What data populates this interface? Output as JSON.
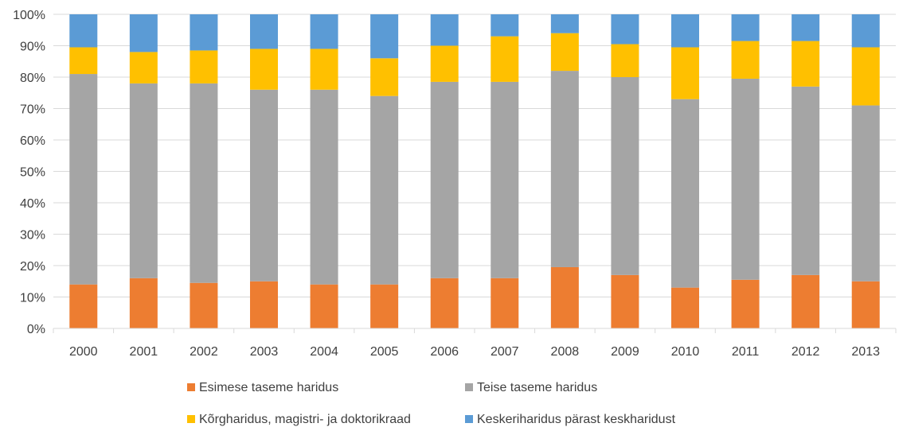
{
  "chart_data": {
    "type": "bar",
    "stacked": true,
    "percent": true,
    "categories": [
      "2000",
      "2001",
      "2002",
      "2003",
      "2004",
      "2005",
      "2006",
      "2007",
      "2008",
      "2009",
      "2010",
      "2011",
      "2012",
      "2013"
    ],
    "series": [
      {
        "name": "Esimese taseme haridus",
        "color": "#ED7D31",
        "values": [
          14,
          16,
          14.5,
          15,
          14,
          14,
          16,
          16,
          19.5,
          17,
          13,
          15.5,
          17,
          15
        ]
      },
      {
        "name": "Teise taseme haridus",
        "color": "#A5A5A5",
        "values": [
          67,
          62,
          63.5,
          61,
          62,
          60,
          62.5,
          62.5,
          62.5,
          63,
          60,
          64,
          60,
          56
        ]
      },
      {
        "name": "Kõrgharidus, magistri- ja doktorikraad",
        "color": "#FFC000",
        "values": [
          8.5,
          10,
          10.5,
          13,
          13,
          12,
          11.5,
          14.5,
          12,
          10.5,
          16.5,
          12,
          14.5,
          18.5
        ]
      },
      {
        "name": "Keskeriharidus pärast keskharidust",
        "color": "#5B9BD5",
        "values": [
          10.5,
          12,
          11.5,
          11,
          11,
          14,
          10,
          7,
          6,
          9.5,
          10.5,
          8.5,
          8.5,
          10.5
        ]
      }
    ],
    "ylim": [
      0,
      100
    ],
    "yticks": [
      "0%",
      "10%",
      "20%",
      "30%",
      "40%",
      "50%",
      "60%",
      "70%",
      "80%",
      "90%",
      "100%"
    ],
    "title": "",
    "xlabel": "",
    "ylabel": "",
    "grid": true,
    "legend_position": "bottom"
  }
}
